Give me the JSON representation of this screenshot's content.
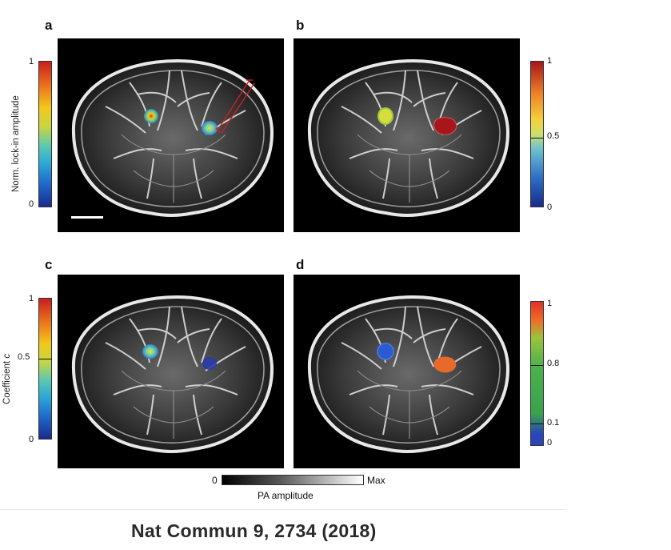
{
  "panels": [
    {
      "letter": "a"
    },
    {
      "letter": "b"
    },
    {
      "letter": "c"
    },
    {
      "letter": "d"
    }
  ],
  "colorbars": {
    "a": {
      "label": "Norm. lock-in amplitude",
      "top": "1",
      "bottom": "0"
    },
    "b": {
      "ticks": [
        "1",
        "0.5",
        "0"
      ]
    },
    "c": {
      "label_prefix": "Coefficient ",
      "label_var": "c",
      "ticks": [
        "1",
        "0.5",
        "0"
      ]
    },
    "d": {
      "ticks": [
        "1",
        "0.8",
        "0.1",
        "0"
      ]
    }
  },
  "pa_colorbar": {
    "min": "0",
    "max": "Max",
    "label": "PA amplitude"
  },
  "citation": "Nat Commun 9, 2734 (2018)",
  "colors": {
    "cold": "#2a5bd0",
    "warm": "#e86a2a",
    "hot": "#b81e22",
    "jet_mid": "#c8d640"
  }
}
